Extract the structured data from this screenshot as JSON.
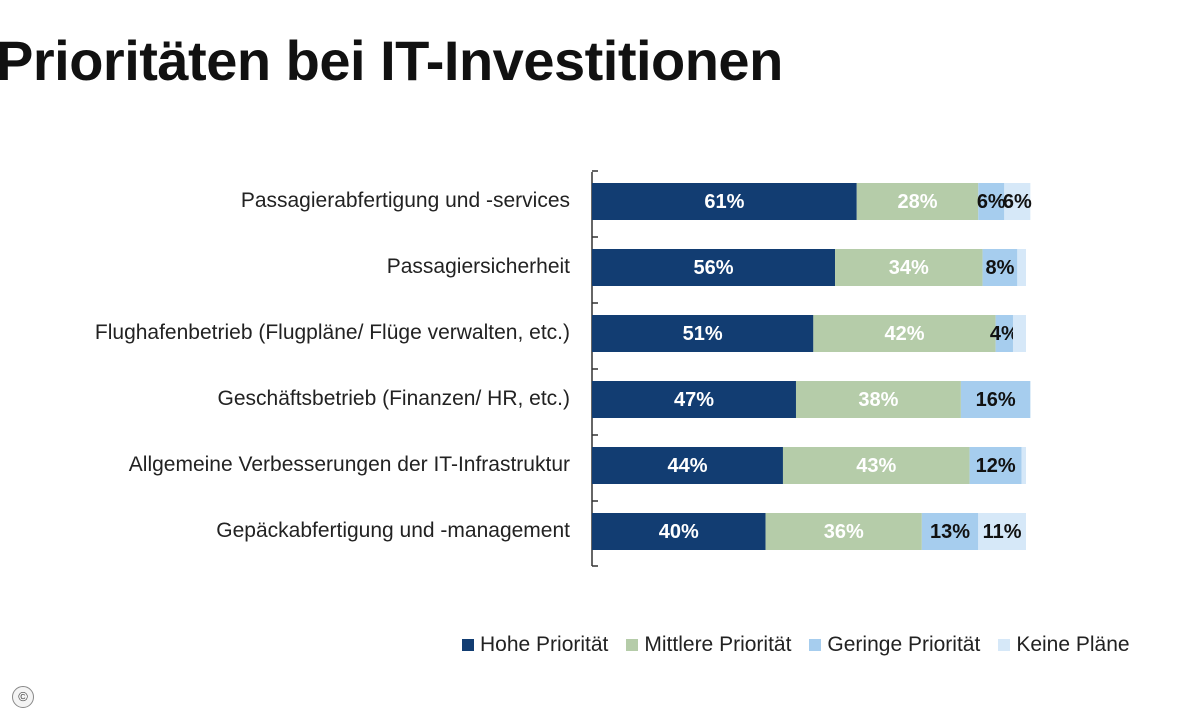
{
  "title": "Prioritäten bei IT-Investitionen",
  "colors": {
    "Hohe Priorität": "#123d72",
    "Mittlere Priorität": "#b5cca9",
    "Geringe Priorität": "#a6cdee",
    "Keine Pläne": "#d6e8f8"
  },
  "chart_data": {
    "type": "bar",
    "orientation": "horizontal",
    "stacked": true,
    "categories": [
      "Passagierabfertigung und -services",
      "Passagiersicherheit",
      "Flughafenbetrieb (Flugpläne/ Flüge verwalten, etc.)",
      "Geschäftsbetrieb (Finanzen/ HR, etc.)",
      "Allgemeine Verbesserungen der IT-Infrastruktur",
      "Gepäckabfertigung und -management"
    ],
    "series": [
      {
        "name": "Hohe Priorität",
        "values": [
          61,
          56,
          51,
          47,
          44,
          40
        ],
        "labels": [
          "61%",
          "56%",
          "51%",
          "47%",
          "44%",
          "40%"
        ]
      },
      {
        "name": "Mittlere Priorität",
        "values": [
          28,
          34,
          42,
          38,
          43,
          36
        ],
        "labels": [
          "28%",
          "34%",
          "42%",
          "38%",
          "43%",
          "36%"
        ]
      },
      {
        "name": "Geringe Priorität",
        "values": [
          6,
          8,
          4,
          16,
          12,
          13
        ],
        "labels": [
          "6%",
          "8%",
          "4%",
          "16%",
          "12%",
          "13%"
        ]
      },
      {
        "name": "Keine Pläne",
        "values": [
          6,
          2,
          3,
          0,
          1,
          11
        ],
        "labels": [
          "6%",
          "",
          "",
          "",
          "",
          "11%"
        ]
      }
    ],
    "xlim": [
      0,
      100
    ],
    "legend_position": "bottom",
    "grid": false
  }
}
